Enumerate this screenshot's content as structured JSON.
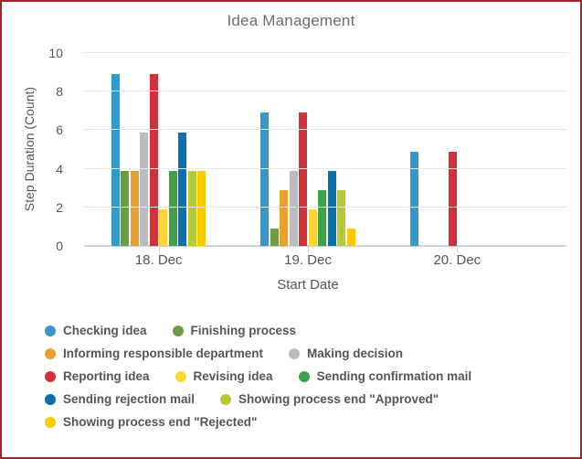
{
  "window": {
    "border_color": "#A52322",
    "background": "#FFFFFF",
    "title_color": "#6D6E71",
    "axis_text_color": "#54565B",
    "gridline_color": "#E6E7E9",
    "axis_line_color": "#C9D3E6"
  },
  "chart_data": {
    "type": "bar",
    "title": "Idea Management",
    "xlabel": "Start Date",
    "ylabel": "Step Duration (Count)",
    "categories": [
      "18. Dec",
      "19. Dec",
      "20. Dec"
    ],
    "yticks": [
      0,
      2,
      4,
      6,
      8,
      10
    ],
    "ylim": [
      0,
      10
    ],
    "grid": "horizontal",
    "legend_position": "bottom-left",
    "series": [
      {
        "name": "Checking idea",
        "color": "#3399CB",
        "values": [
          8.9,
          6.9,
          4.9
        ]
      },
      {
        "name": "Finishing process",
        "color": "#6B9C45",
        "values": [
          3.9,
          0.9,
          0
        ]
      },
      {
        "name": "Informing responsible department",
        "color": "#E9A02C",
        "values": [
          3.9,
          2.9,
          0
        ]
      },
      {
        "name": "Making decision",
        "color": "#BEBABD",
        "values": [
          5.9,
          3.9,
          0
        ]
      },
      {
        "name": "Reporting idea",
        "color": "#D13239",
        "values": [
          8.9,
          6.9,
          4.9
        ]
      },
      {
        "name": "Revising idea",
        "color": "#FCD736",
        "values": [
          1.9,
          1.9,
          0
        ]
      },
      {
        "name": "Sending confirmation mail",
        "color": "#3FA24A",
        "values": [
          3.9,
          2.9,
          0
        ]
      },
      {
        "name": "Sending rejection mail",
        "color": "#0B70AE",
        "values": [
          5.9,
          3.9,
          0
        ]
      },
      {
        "name": "Showing process end \"Approved\"",
        "color": "#B6C93B",
        "values": [
          3.9,
          2.9,
          0
        ]
      },
      {
        "name": "Showing process end \"Rejected\"",
        "color": "#F9CC00",
        "values": [
          3.9,
          0.9,
          0
        ]
      }
    ],
    "legend_rows": [
      [
        0,
        1
      ],
      [
        2,
        3
      ],
      [
        4,
        5,
        6
      ],
      [
        7,
        8
      ],
      [
        9
      ]
    ]
  }
}
